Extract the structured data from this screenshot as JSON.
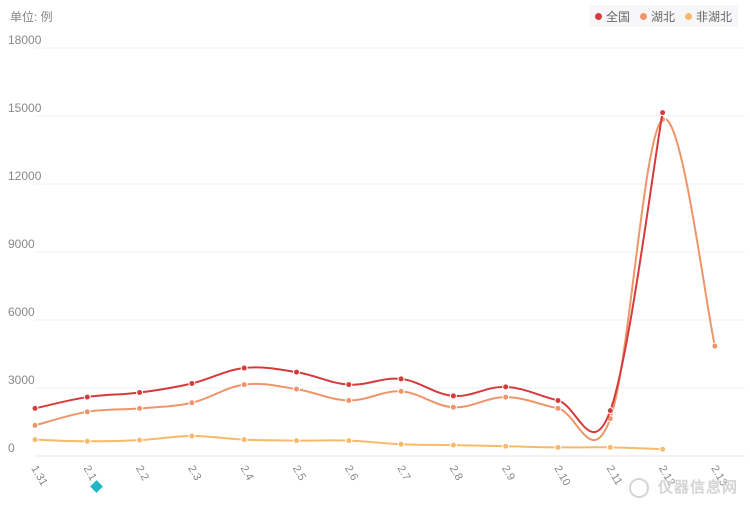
{
  "unit_label": "单位: 例",
  "watermark": "仪器信息网",
  "chart_data": {
    "type": "line",
    "categories": [
      "1.31",
      "2.1",
      "2.2",
      "2.3",
      "2.4",
      "2.5",
      "2.6",
      "2.7",
      "2.8",
      "2.9",
      "2.10",
      "2.11",
      "2.12",
      "2.13"
    ],
    "ylim": [
      0,
      18000
    ],
    "yticks": [
      0,
      3000,
      6000,
      9000,
      12000,
      15000,
      18000
    ],
    "grid": true,
    "legend_position": "top-right",
    "series": [
      {
        "name": "全国",
        "color": "#d63b3b",
        "values": [
          2100,
          2600,
          2800,
          3200,
          3880,
          3700,
          3150,
          3400,
          2650,
          3050,
          2450,
          2000,
          15150,
          null
        ]
      },
      {
        "name": "湖北",
        "color": "#f0946a",
        "values": [
          1350,
          1950,
          2100,
          2350,
          3150,
          2950,
          2450,
          2850,
          2150,
          2600,
          2100,
          1650,
          14850,
          4850
        ]
      },
      {
        "name": "非湖北",
        "color": "#f7b96a",
        "values": [
          720,
          650,
          700,
          880,
          720,
          680,
          680,
          520,
          480,
          430,
          380,
          380,
          300,
          null
        ]
      }
    ]
  }
}
